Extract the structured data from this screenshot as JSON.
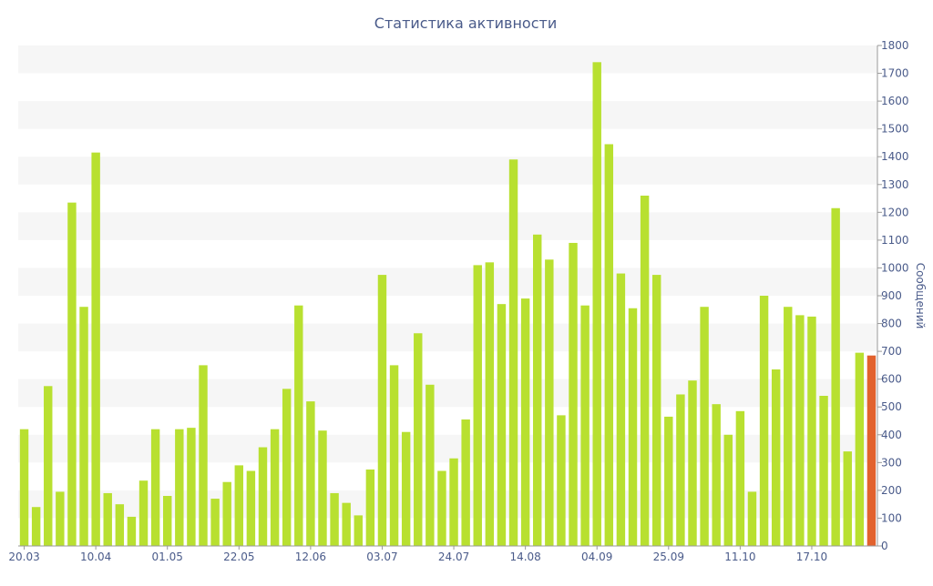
{
  "chart_data": {
    "type": "bar",
    "title": "Статистика активности",
    "ylabel": "Сообщений",
    "ylim": [
      0,
      1800
    ],
    "y_ticks": [
      0,
      100,
      200,
      300,
      400,
      500,
      600,
      700,
      800,
      900,
      1000,
      1100,
      1200,
      1300,
      1400,
      1500,
      1600,
      1700,
      1800
    ],
    "x_tick_labels": [
      "20.03",
      "10.04",
      "01.05",
      "22.05",
      "12.06",
      "03.07",
      "24.07",
      "14.08",
      "04.09",
      "25.09",
      "11.10",
      "17.10"
    ],
    "x_tick_indices": [
      0,
      6,
      12,
      18,
      24,
      30,
      36,
      42,
      48,
      54,
      60,
      66
    ],
    "values": [
      420,
      140,
      575,
      195,
      1235,
      860,
      1415,
      190,
      150,
      105,
      235,
      420,
      180,
      420,
      425,
      650,
      170,
      230,
      290,
      270,
      355,
      420,
      565,
      865,
      520,
      415,
      190,
      155,
      110,
      275,
      975,
      650,
      410,
      765,
      580,
      270,
      315,
      455,
      1010,
      1020,
      870,
      1390,
      890,
      1120,
      1030,
      470,
      1090,
      865,
      1740,
      1445,
      980,
      855,
      1260,
      975,
      465,
      545,
      595,
      860,
      510,
      400,
      485,
      195,
      900,
      635,
      860,
      830,
      825,
      540,
      1215,
      340,
      695,
      685
    ],
    "highlight_index": 71,
    "colors": {
      "bar": "#b8e030",
      "highlight": "#e2622e",
      "text": "#4a5b8a",
      "band": "#f6f6f6"
    },
    "grid": "alternating-bands",
    "y_axis_position": "right"
  }
}
